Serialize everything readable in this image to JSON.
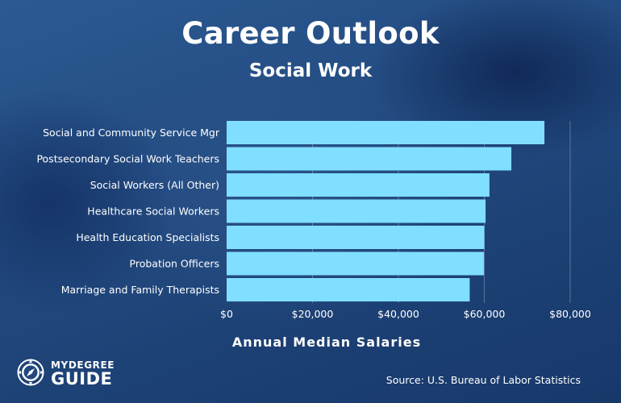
{
  "header": {
    "title": "Career Outlook",
    "subtitle": "Social Work"
  },
  "chart_data": {
    "type": "bar",
    "orientation": "horizontal",
    "title": "Career Outlook",
    "subtitle": "Social Work",
    "categories": [
      "Social and Community Service Mgr",
      "Postsecondary Social Work Teachers",
      "Social Workers (All Other)",
      "Healthcare Social Workers",
      "Health Education Specialists",
      "Probation Officers",
      "Marriage and Family Therapists"
    ],
    "values": [
      74000,
      66300,
      61200,
      60300,
      60000,
      59900,
      56600
    ],
    "xlabel": "Annual Median Salaries",
    "ylabel": "",
    "xlim": [
      0,
      80000
    ],
    "x_ticks": [
      0,
      20000,
      40000,
      60000,
      80000
    ],
    "x_tick_labels": [
      "$0",
      "$20,000",
      "$40,000",
      "$60,000",
      "$80,000"
    ],
    "bar_color": "#80dfff",
    "grid": true
  },
  "footer": {
    "logo_top": "MYDEGREE",
    "logo_bottom": "GUIDE",
    "source": "Source: U.S. Bureau of Labor Statistics"
  },
  "colors": {
    "background": "#21497e",
    "text": "#ffffff",
    "bar": "#80dfff"
  }
}
